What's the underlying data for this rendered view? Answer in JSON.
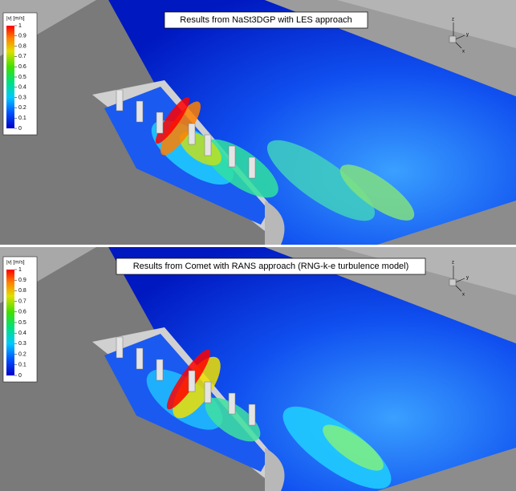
{
  "panels": [
    {
      "title": "Results from NaSt3DGP with LES approach",
      "colorbar": {
        "label": "|v| [m/s]",
        "ticks": [
          1,
          0.9,
          0.8,
          0.7,
          0.6,
          0.5,
          0.4,
          0.3,
          0.2,
          0.1,
          0
        ]
      },
      "axes": {
        "z": "z",
        "y": "y",
        "x": "x"
      }
    },
    {
      "title": "Results from Comet with RANS approach (RNG-k-e turbulence model)",
      "colorbar": {
        "label": "|v| [m/s]",
        "ticks": [
          1,
          0.9,
          0.8,
          0.7,
          0.6,
          0.5,
          0.4,
          0.3,
          0.2,
          0.1,
          0
        ]
      },
      "axes": {
        "z": "z",
        "y": "y",
        "x": "x"
      }
    }
  ]
}
